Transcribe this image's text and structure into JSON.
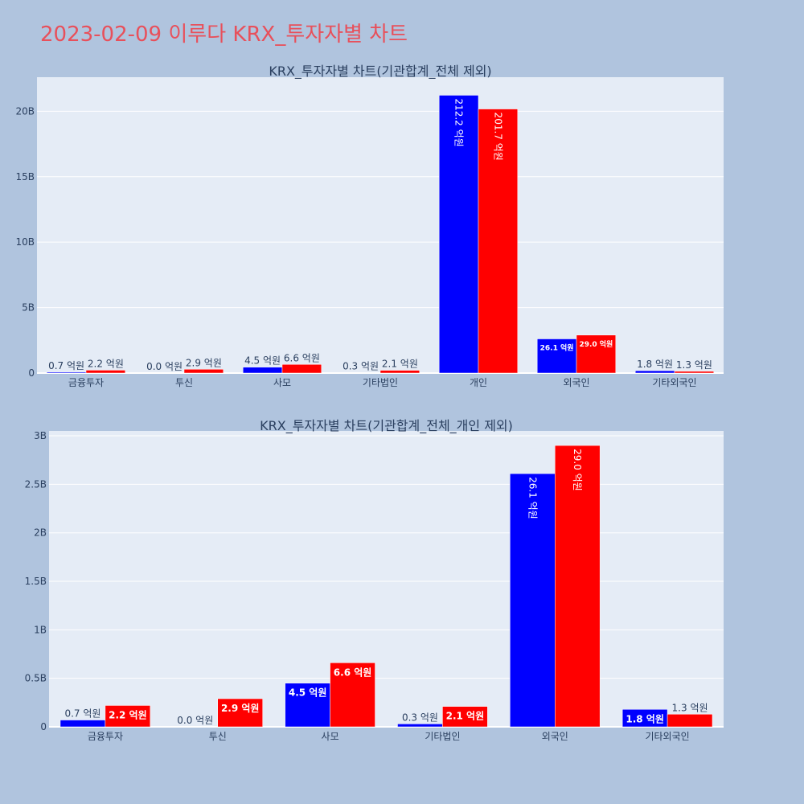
{
  "title": "2023-02-09 이루다 KRX_투자자별 차트",
  "colors": {
    "background": "#b0c4de",
    "plot_background": "#e5ecf6",
    "series_1": "#0000ff",
    "series_2": "#ff0000",
    "title": "#e8505b",
    "text": "#2a3f5f"
  },
  "chart_data": [
    {
      "type": "bar",
      "title": "KRX_투자자별 차트(기관합계_전체 제외)",
      "categories": [
        "금융투자",
        "투신",
        "사모",
        "기타법인",
        "개인",
        "외국인",
        "기타외국인"
      ],
      "series": [
        {
          "values": [
            70000000,
            0,
            450000000,
            30000000,
            21220000000,
            2610000000,
            180000000
          ],
          "labels": [
            "0.7 억원",
            "0.0 억원",
            "4.5 억원",
            "0.3 억원",
            "212.2 억원",
            "26.1 억원",
            "1.8 억원"
          ]
        },
        {
          "values": [
            220000000,
            290000000,
            660000000,
            210000000,
            20170000000,
            2900000000,
            130000000
          ],
          "labels": [
            "2.2 억원",
            "2.9 억원",
            "6.6 억원",
            "2.1 억원",
            "201.7 억원",
            "29.0 억원",
            "1.3 억원"
          ]
        }
      ],
      "ylim": [
        0,
        22600000000
      ],
      "yticks": [
        0,
        5000000000,
        10000000000,
        15000000000,
        20000000000
      ],
      "ytick_labels": [
        "0",
        "5B",
        "10B",
        "15B",
        "20B"
      ],
      "grid": true,
      "legend": "none"
    },
    {
      "type": "bar",
      "title": "KRX_투자자별 차트(기관합계_전체_개인 제외)",
      "categories": [
        "금융투자",
        "투신",
        "사모",
        "기타법인",
        "외국인",
        "기타외국인"
      ],
      "series": [
        {
          "values": [
            70000000,
            0,
            450000000,
            30000000,
            2610000000,
            180000000
          ],
          "labels": [
            "0.7 억원",
            "0.0 억원",
            "4.5 억원",
            "0.3 억원",
            "26.1 억원",
            "1.8 억원"
          ]
        },
        {
          "values": [
            220000000,
            290000000,
            660000000,
            210000000,
            2900000000,
            130000000
          ],
          "labels": [
            "2.2 억원",
            "2.9 억원",
            "6.6 억원",
            "2.1 억원",
            "29.0 억원",
            "1.3 억원"
          ]
        }
      ],
      "ylim": [
        0,
        3050000000
      ],
      "yticks": [
        0,
        500000000,
        1000000000,
        1500000000,
        2000000000,
        2500000000,
        3000000000
      ],
      "ytick_labels": [
        "0",
        "0.5B",
        "1B",
        "1.5B",
        "2B",
        "2.5B",
        "3B"
      ],
      "grid": true,
      "legend": "none"
    }
  ]
}
